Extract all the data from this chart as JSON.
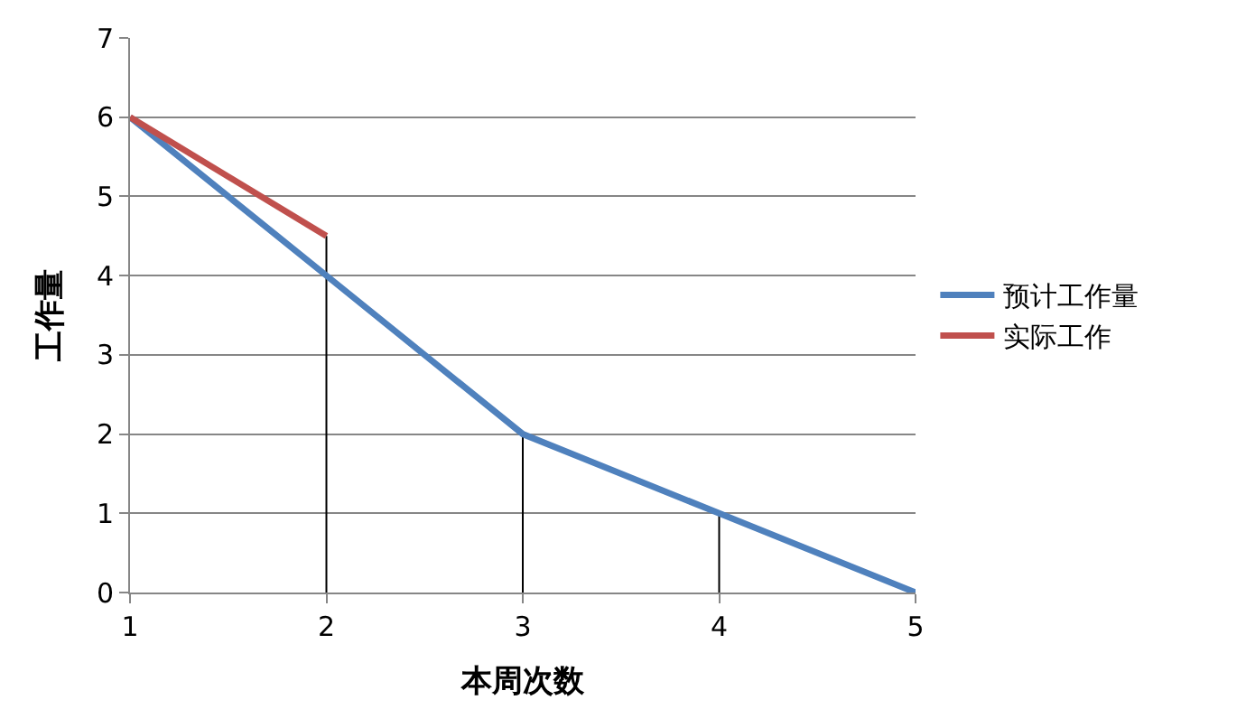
{
  "chart_data": {
    "type": "line",
    "xlabel": "本周次数",
    "ylabel": "工作量",
    "x": [
      1,
      2,
      3,
      4,
      5
    ],
    "xlim": [
      1,
      5
    ],
    "xticks": [
      1,
      2,
      3,
      4,
      5
    ],
    "ylim": [
      0,
      7
    ],
    "yticks": [
      0,
      1,
      2,
      3,
      4,
      5,
      6,
      7
    ],
    "grid": "y",
    "legend": "right",
    "marker": "none",
    "line_style": "solid",
    "series": [
      {
        "name": "预计工作量",
        "color": "#4f81bd",
        "values": [
          6,
          4,
          2,
          1,
          0
        ]
      },
      {
        "name": "实际工作",
        "color": "#c0504d",
        "x": [
          1,
          2
        ],
        "values": [
          6,
          4.5
        ]
      },
      {
        "color": "#000000",
        "x": [
          2,
          2,
          null,
          3,
          3,
          null,
          4,
          4
        ],
        "values": [
          0,
          4.5,
          null,
          0,
          2,
          null,
          0,
          1
        ]
      }
    ]
  }
}
